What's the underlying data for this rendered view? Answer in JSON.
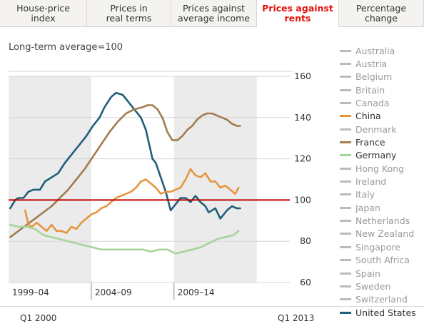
{
  "tabs": [
    {
      "label": "House-price\nindex",
      "active": false
    },
    {
      "label": "Prices in\nreal terms",
      "active": false
    },
    {
      "label": "Prices against\naverage income",
      "active": false
    },
    {
      "label": "Prices against\nrents",
      "active": true
    },
    {
      "label": "Percentage\nchange",
      "active": false
    }
  ],
  "subtitle": "Long-term average=100",
  "legend": [
    {
      "name": "Australia",
      "color": "#bbbbbb",
      "on": false
    },
    {
      "name": "Austria",
      "color": "#bbbbbb",
      "on": false
    },
    {
      "name": "Belgium",
      "color": "#bbbbbb",
      "on": false
    },
    {
      "name": "Britain",
      "color": "#bbbbbb",
      "on": false
    },
    {
      "name": "Canada",
      "color": "#bbbbbb",
      "on": false
    },
    {
      "name": "China",
      "color": "#e6953f",
      "on": true
    },
    {
      "name": "Denmark",
      "color": "#bbbbbb",
      "on": false
    },
    {
      "name": "France",
      "color": "#a27b50",
      "on": true
    },
    {
      "name": "Germany",
      "color": "#a6d49a",
      "on": true
    },
    {
      "name": "Hong Kong",
      "color": "#bbbbbb",
      "on": false
    },
    {
      "name": "Ireland",
      "color": "#bbbbbb",
      "on": false
    },
    {
      "name": "Italy",
      "color": "#bbbbbb",
      "on": false
    },
    {
      "name": "Japan",
      "color": "#bbbbbb",
      "on": false
    },
    {
      "name": "Netherlands",
      "color": "#bbbbbb",
      "on": false
    },
    {
      "name": "New Zealand",
      "color": "#bbbbbb",
      "on": false
    },
    {
      "name": "Singapore",
      "color": "#bbbbbb",
      "on": false
    },
    {
      "name": "South Africa",
      "color": "#bbbbbb",
      "on": false
    },
    {
      "name": "Spain",
      "color": "#bbbbbb",
      "on": false
    },
    {
      "name": "Sweden",
      "color": "#bbbbbb",
      "on": false
    },
    {
      "name": "Switzerland",
      "color": "#bbbbbb",
      "on": false
    },
    {
      "name": "United States",
      "color": "#1f5f7a",
      "on": true
    }
  ],
  "footer": {
    "start": "Q1 2000",
    "end": "Q1 2013"
  },
  "chart_data": {
    "type": "line",
    "title": "Prices against rents",
    "subtitle": "Long-term average=100",
    "xlim": [
      1999.0,
      2016.0
    ],
    "ylim": [
      60,
      160
    ],
    "yticks": [
      60,
      80,
      100,
      120,
      140,
      160
    ],
    "reference_line": {
      "value": 100,
      "color": "#c00000"
    },
    "periods": [
      {
        "label": "1999–04",
        "start": 1999.0,
        "end": 2004.0,
        "shaded": true
      },
      {
        "label": "2004–09",
        "start": 2004.0,
        "end": 2009.0,
        "shaded": false
      },
      {
        "label": "2009–14",
        "start": 2009.0,
        "end": 2014.0,
        "shaded": true
      }
    ],
    "series": [
      {
        "name": "United States",
        "color": "#1f5f7a",
        "x": [
          1999.1,
          1999.4,
          1999.6,
          1999.9,
          2000.2,
          2000.5,
          2000.9,
          2001.2,
          2001.6,
          2002.0,
          2002.4,
          2002.9,
          2003.3,
          2003.7,
          2004.1,
          2004.5,
          2004.8,
          2005.2,
          2005.5,
          2005.9,
          2006.2,
          2006.6,
          2007.0,
          2007.3,
          2007.7,
          2007.9,
          2008.2,
          2008.5,
          2008.8,
          2009.1,
          2009.4,
          2009.7,
          2010.0,
          2010.3,
          2010.6,
          2010.9,
          2011.1,
          2011.5,
          2011.8,
          2012.2,
          2012.5,
          2012.8,
          2013.0
        ],
        "y": [
          96,
          100,
          101,
          101,
          104,
          105,
          105,
          109,
          111,
          113,
          118,
          123,
          127,
          131,
          136,
          140,
          145,
          150,
          152,
          151,
          148,
          144,
          140,
          134,
          120,
          118,
          111,
          104,
          95,
          98,
          101,
          101,
          99,
          102,
          99,
          97,
          94,
          96,
          91,
          95,
          97,
          96,
          96
        ]
      },
      {
        "name": "France",
        "color": "#a27b50",
        "x": [
          1999.1,
          1999.6,
          2000.1,
          2000.6,
          2001.1,
          2001.6,
          2002.1,
          2002.6,
          2003.1,
          2003.6,
          2004.1,
          2004.6,
          2005.1,
          2005.6,
          2006.1,
          2006.6,
          2007.1,
          2007.4,
          2007.7,
          2008.0,
          2008.3,
          2008.6,
          2008.9,
          2009.2,
          2009.5,
          2009.8,
          2010.1,
          2010.4,
          2010.7,
          2011.0,
          2011.3,
          2011.6,
          2011.9,
          2012.2,
          2012.5,
          2012.8,
          2013.0
        ],
        "y": [
          82,
          85,
          88,
          91,
          94,
          97,
          101,
          105,
          110,
          115,
          121,
          127,
          133,
          138,
          142,
          144,
          145,
          146,
          146,
          144,
          140,
          133,
          129,
          129,
          131,
          134,
          136,
          139,
          141,
          142,
          142,
          141,
          140,
          139,
          137,
          136,
          136
        ]
      },
      {
        "name": "China",
        "color": "#e6953f",
        "x": [
          2000.0,
          2000.2,
          2000.4,
          2000.7,
          2001.0,
          2001.3,
          2001.6,
          2001.9,
          2002.2,
          2002.5,
          2002.8,
          2003.1,
          2003.4,
          2003.7,
          2004.0,
          2004.3,
          2004.6,
          2004.9,
          2005.2,
          2005.5,
          2005.8,
          2006.1,
          2006.4,
          2006.7,
          2007.0,
          2007.3,
          2007.6,
          2007.9,
          2008.2,
          2008.5,
          2008.8,
          2009.1,
          2009.4,
          2009.7,
          2010.0,
          2010.3,
          2010.6,
          2010.9,
          2011.2,
          2011.5,
          2011.8,
          2012.1,
          2012.4,
          2012.7,
          2012.9
        ],
        "y": [
          95,
          88,
          87,
          89,
          87,
          85,
          88,
          85,
          85,
          84,
          87,
          86,
          89,
          91,
          93,
          94,
          96,
          97,
          99,
          101,
          102,
          103,
          104,
          106,
          109,
          110,
          108,
          106,
          103,
          104,
          104,
          105,
          106,
          110,
          115,
          112,
          111,
          113,
          109,
          109,
          106,
          107,
          105,
          103,
          106
        ]
      },
      {
        "name": "Germany",
        "color": "#a6d49a",
        "x": [
          1999.1,
          1999.6,
          2000.1,
          2000.6,
          2001.1,
          2001.6,
          2002.1,
          2002.6,
          2003.1,
          2003.6,
          2004.1,
          2004.6,
          2005.1,
          2005.6,
          2006.1,
          2006.6,
          2007.1,
          2007.6,
          2008.1,
          2008.6,
          2009.1,
          2009.6,
          2010.1,
          2010.6,
          2011.1,
          2011.6,
          2012.1,
          2012.6,
          2012.9
        ],
        "y": [
          88,
          87,
          87,
          86,
          83,
          82,
          81,
          80,
          79,
          78,
          77,
          76,
          76,
          76,
          76,
          76,
          76,
          75,
          76,
          76,
          74,
          75,
          76,
          77,
          79,
          81,
          82,
          83,
          85
        ]
      }
    ]
  }
}
